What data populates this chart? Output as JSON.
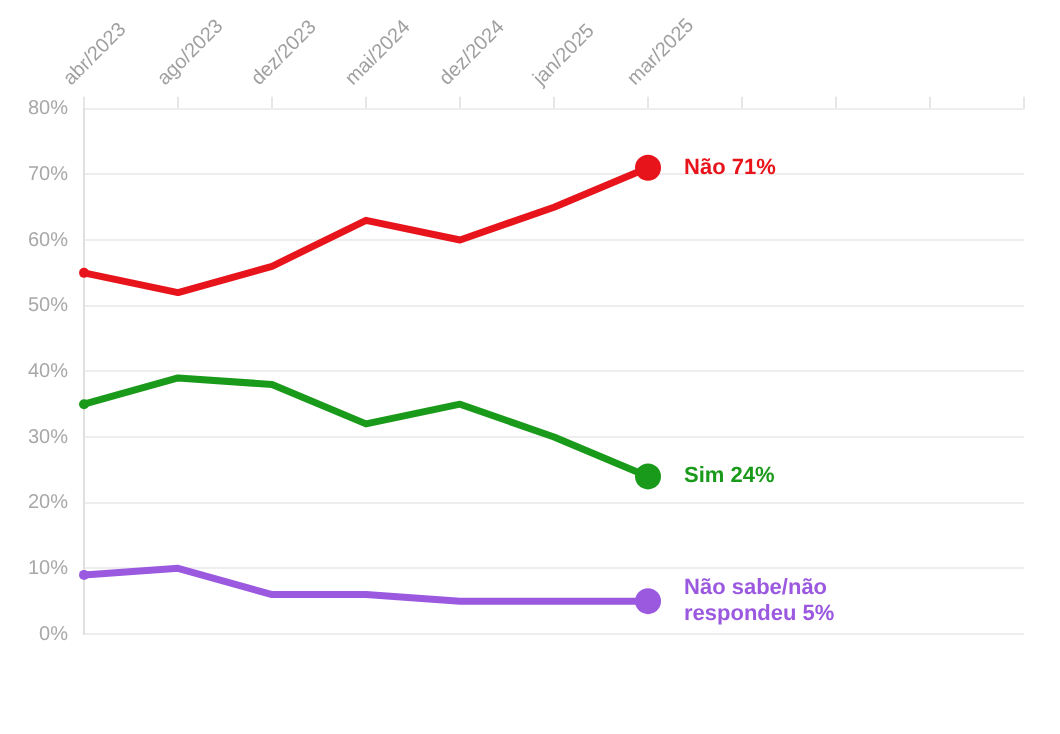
{
  "chart_data": {
    "type": "line",
    "categories": [
      "abr/2023",
      "ago/2023",
      "dez/2023",
      "mai/2024",
      "dez/2024",
      "jan/2025",
      "mar/2025",
      null,
      null,
      null,
      null
    ],
    "series": [
      {
        "name": "Não",
        "color": "#e8141c",
        "values": [
          55,
          52,
          56,
          63,
          60,
          65,
          71,
          null,
          null,
          null,
          null
        ],
        "value_labels": [
          null,
          null,
          null,
          null,
          null,
          null,
          "71%",
          null,
          null,
          null,
          null
        ]
      },
      {
        "name": "Sim",
        "color": "#1a9a1a",
        "values": [
          35,
          39,
          38,
          32,
          35,
          30,
          24,
          null,
          null,
          null,
          null
        ],
        "value_labels": [
          null,
          null,
          null,
          null,
          null,
          null,
          "24%",
          null,
          null,
          null,
          null
        ]
      },
      {
        "name": "Não sabe/não respondeu",
        "color": "#9b59e0",
        "values": [
          9,
          10,
          6,
          6,
          5,
          5,
          5,
          null,
          null,
          null,
          null
        ],
        "value_labels": [
          null,
          null,
          null,
          null,
          null,
          null,
          "5%",
          null,
          null,
          null,
          null
        ]
      }
    ],
    "ylim": [
      0,
      80
    ],
    "yticks": [
      {
        "value": 0,
        "label": "0%"
      },
      {
        "value": 10,
        "label": "10%"
      },
      {
        "value": 20,
        "label": "20%"
      },
      {
        "value": 30,
        "label": "30%"
      },
      {
        "value": 40,
        "label": "40%"
      },
      {
        "value": 50,
        "label": "50%"
      },
      {
        "value": 60,
        "label": "60%"
      },
      {
        "value": 70,
        "label": "70%"
      },
      {
        "value": 80,
        "label": "80%"
      }
    ],
    "grid": "y"
  }
}
